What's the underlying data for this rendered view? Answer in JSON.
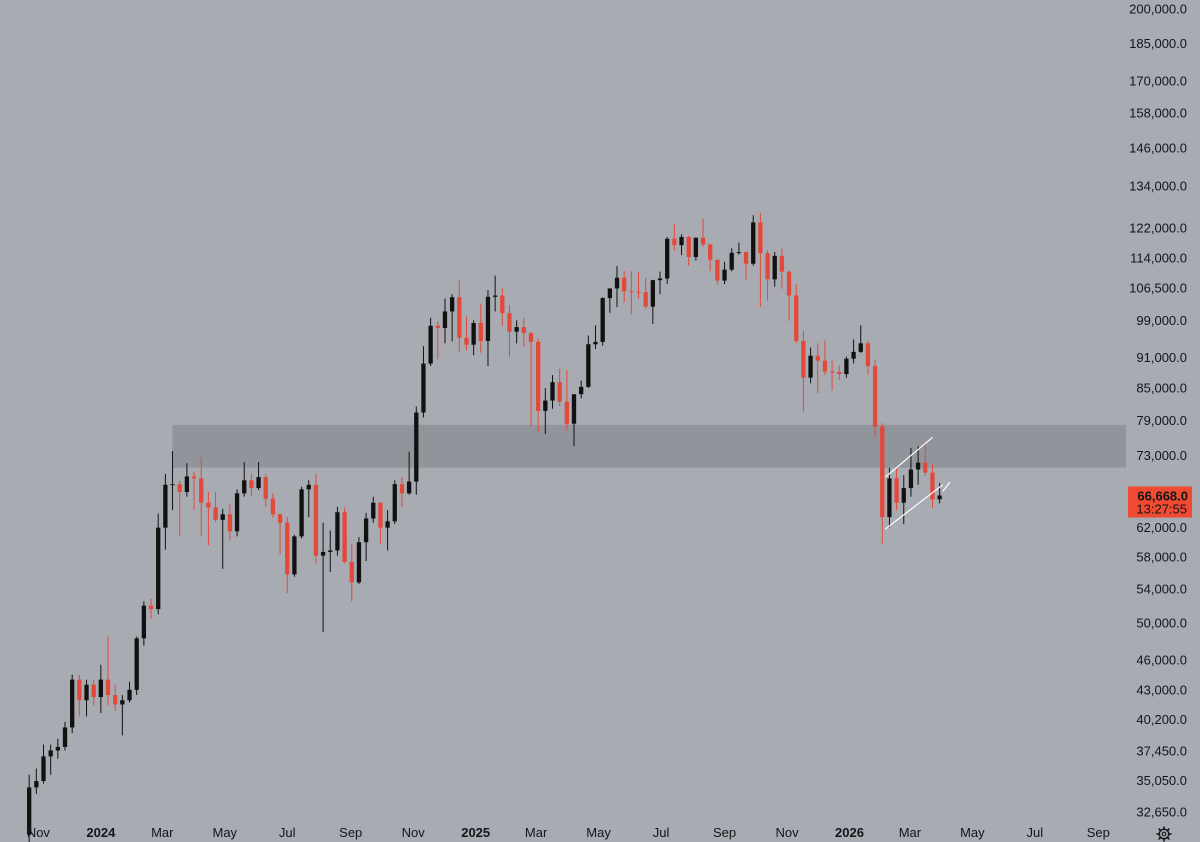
{
  "colors": {
    "background": "#a9abb2",
    "up": "#111111",
    "down": "#e3493a",
    "zone": "#8d8f95",
    "channel": "#ffffff",
    "price_tag": "#f04a33",
    "text": "#141519"
  },
  "icons": {
    "settings": "gear-icon"
  },
  "chart_data": {
    "type": "candlestick",
    "interval": "weekly",
    "y_scale": "log",
    "ylim": [
      30500,
      204000
    ],
    "xlim": [
      "2023-10-16",
      "2026-09-28"
    ],
    "title": "",
    "xlabel": "",
    "ylabel": "",
    "grid": false,
    "y_ticks": [
      "200,000.0",
      "185,000.0",
      "170,000.0",
      "158,000.0",
      "146,000.0",
      "134,000.0",
      "122,000.0",
      "114,000.0",
      "106,500.0",
      "99,000.0",
      "91,000.0",
      "85,000.0",
      "79,000.0",
      "73,000.0",
      "62,000.0",
      "58,000.0",
      "54,000.0",
      "50,000.0",
      "46,000.0",
      "43,000.0",
      "40,200.0",
      "37,450.0",
      "35,050.0",
      "32,650.0"
    ],
    "x_ticks": [
      {
        "label": "Nov",
        "date": "2023-11-01",
        "bold": false
      },
      {
        "label": "2024",
        "date": "2024-01-01",
        "bold": true
      },
      {
        "label": "Mar",
        "date": "2024-03-01",
        "bold": false
      },
      {
        "label": "May",
        "date": "2024-05-01",
        "bold": false
      },
      {
        "label": "Jul",
        "date": "2024-07-01",
        "bold": false
      },
      {
        "label": "Sep",
        "date": "2024-09-01",
        "bold": false
      },
      {
        "label": "Nov",
        "date": "2024-11-01",
        "bold": false
      },
      {
        "label": "2025",
        "date": "2025-01-01",
        "bold": true
      },
      {
        "label": "Mar",
        "date": "2025-03-01",
        "bold": false
      },
      {
        "label": "May",
        "date": "2025-05-01",
        "bold": false
      },
      {
        "label": "Jul",
        "date": "2025-07-01",
        "bold": false
      },
      {
        "label": "Sep",
        "date": "2025-09-01",
        "bold": false
      },
      {
        "label": "Nov",
        "date": "2025-11-01",
        "bold": false
      },
      {
        "label": "2026",
        "date": "2026-01-01",
        "bold": true
      },
      {
        "label": "Mar",
        "date": "2026-03-01",
        "bold": false
      },
      {
        "label": "May",
        "date": "2026-05-01",
        "bold": false
      },
      {
        "label": "Jul",
        "date": "2026-07-01",
        "bold": false
      },
      {
        "label": "Sep",
        "date": "2026-09-01",
        "bold": false
      }
    ],
    "candles": [
      {
        "date": "2023-10-23",
        "o": 31000,
        "h": 35500,
        "l": 30500,
        "c": 34500
      },
      {
        "date": "2023-10-30",
        "o": 34500,
        "h": 36000,
        "l": 34000,
        "c": 35000
      },
      {
        "date": "2023-11-06",
        "o": 35000,
        "h": 38000,
        "l": 34800,
        "c": 37000
      },
      {
        "date": "2023-11-13",
        "o": 37000,
        "h": 38000,
        "l": 35500,
        "c": 37500
      },
      {
        "date": "2023-11-20",
        "o": 37500,
        "h": 38500,
        "l": 36800,
        "c": 37800
      },
      {
        "date": "2023-11-27",
        "o": 37800,
        "h": 40000,
        "l": 37500,
        "c": 39500
      },
      {
        "date": "2023-12-04",
        "o": 39500,
        "h": 44500,
        "l": 39000,
        "c": 44000
      },
      {
        "date": "2023-12-11",
        "o": 44000,
        "h": 44500,
        "l": 40500,
        "c": 42000
      },
      {
        "date": "2023-12-18",
        "o": 42000,
        "h": 44000,
        "l": 40500,
        "c": 43500
      },
      {
        "date": "2023-12-25",
        "o": 43500,
        "h": 44000,
        "l": 41500,
        "c": 42300
      },
      {
        "date": "2024-01-01",
        "o": 42300,
        "h": 45500,
        "l": 40800,
        "c": 44000
      },
      {
        "date": "2024-01-08",
        "o": 44000,
        "h": 48500,
        "l": 41500,
        "c": 42500
      },
      {
        "date": "2024-01-15",
        "o": 42500,
        "h": 43500,
        "l": 41000,
        "c": 41600
      },
      {
        "date": "2024-01-22",
        "o": 41600,
        "h": 42500,
        "l": 38800,
        "c": 42000
      },
      {
        "date": "2024-01-29",
        "o": 42000,
        "h": 43800,
        "l": 41800,
        "c": 43000
      },
      {
        "date": "2024-02-05",
        "o": 43000,
        "h": 48500,
        "l": 42500,
        "c": 48300
      },
      {
        "date": "2024-02-12",
        "o": 48300,
        "h": 52500,
        "l": 47500,
        "c": 52000
      },
      {
        "date": "2024-02-19",
        "o": 52000,
        "h": 52800,
        "l": 50500,
        "c": 51600
      },
      {
        "date": "2024-02-26",
        "o": 51600,
        "h": 64000,
        "l": 51000,
        "c": 62000
      },
      {
        "date": "2024-03-04",
        "o": 62000,
        "h": 70000,
        "l": 59000,
        "c": 68300
      },
      {
        "date": "2024-03-11",
        "o": 68300,
        "h": 73700,
        "l": 64500,
        "c": 68400
      },
      {
        "date": "2024-03-18",
        "o": 68400,
        "h": 68900,
        "l": 60800,
        "c": 67200
      },
      {
        "date": "2024-03-25",
        "o": 67200,
        "h": 71700,
        "l": 66500,
        "c": 69600
      },
      {
        "date": "2024-04-01",
        "o": 69600,
        "h": 70300,
        "l": 64500,
        "c": 69300
      },
      {
        "date": "2024-04-08",
        "o": 69300,
        "h": 72700,
        "l": 60800,
        "c": 65600
      },
      {
        "date": "2024-04-15",
        "o": 65600,
        "h": 67200,
        "l": 59600,
        "c": 64900
      },
      {
        "date": "2024-04-22",
        "o": 64900,
        "h": 67200,
        "l": 62800,
        "c": 63100
      },
      {
        "date": "2024-04-29",
        "o": 63100,
        "h": 64700,
        "l": 56500,
        "c": 63900
      },
      {
        "date": "2024-05-06",
        "o": 63900,
        "h": 65400,
        "l": 60200,
        "c": 61500
      },
      {
        "date": "2024-05-13",
        "o": 61500,
        "h": 67600,
        "l": 60800,
        "c": 67000
      },
      {
        "date": "2024-05-20",
        "o": 67000,
        "h": 71900,
        "l": 66500,
        "c": 69000
      },
      {
        "date": "2024-05-27",
        "o": 69000,
        "h": 70000,
        "l": 66600,
        "c": 67800
      },
      {
        "date": "2024-06-03",
        "o": 67800,
        "h": 71900,
        "l": 67500,
        "c": 69500
      },
      {
        "date": "2024-06-10",
        "o": 69500,
        "h": 70000,
        "l": 65000,
        "c": 66200
      },
      {
        "date": "2024-06-17",
        "o": 66200,
        "h": 67000,
        "l": 63400,
        "c": 63900
      },
      {
        "date": "2024-06-24",
        "o": 63900,
        "h": 64000,
        "l": 58400,
        "c": 62700
      },
      {
        "date": "2024-07-01",
        "o": 62700,
        "h": 63500,
        "l": 53500,
        "c": 55800
      },
      {
        "date": "2024-07-08",
        "o": 55800,
        "h": 61000,
        "l": 55500,
        "c": 60800
      },
      {
        "date": "2024-07-15",
        "o": 60800,
        "h": 68000,
        "l": 60500,
        "c": 67600
      },
      {
        "date": "2024-07-22",
        "o": 67600,
        "h": 69000,
        "l": 63500,
        "c": 68300
      },
      {
        "date": "2024-07-29",
        "o": 68300,
        "h": 70000,
        "l": 57200,
        "c": 58200
      },
      {
        "date": "2024-08-05",
        "o": 58200,
        "h": 62700,
        "l": 49000,
        "c": 58700
      },
      {
        "date": "2024-08-12",
        "o": 58700,
        "h": 61600,
        "l": 56100,
        "c": 58900
      },
      {
        "date": "2024-08-19",
        "o": 58900,
        "h": 65000,
        "l": 58200,
        "c": 64200
      },
      {
        "date": "2024-08-26",
        "o": 64200,
        "h": 64900,
        "l": 57200,
        "c": 57400
      },
      {
        "date": "2024-09-02",
        "o": 57400,
        "h": 59800,
        "l": 52500,
        "c": 54800
      },
      {
        "date": "2024-09-09",
        "o": 54800,
        "h": 60700,
        "l": 54600,
        "c": 60000
      },
      {
        "date": "2024-09-16",
        "o": 60000,
        "h": 64100,
        "l": 57500,
        "c": 63300
      },
      {
        "date": "2024-09-23",
        "o": 63300,
        "h": 66500,
        "l": 62700,
        "c": 65600
      },
      {
        "date": "2024-09-30",
        "o": 65600,
        "h": 65600,
        "l": 59800,
        "c": 62000
      },
      {
        "date": "2024-10-07",
        "o": 62000,
        "h": 64500,
        "l": 58900,
        "c": 62900
      },
      {
        "date": "2024-10-14",
        "o": 62900,
        "h": 69000,
        "l": 62500,
        "c": 68400
      },
      {
        "date": "2024-10-21",
        "o": 68400,
        "h": 69500,
        "l": 65000,
        "c": 67000
      },
      {
        "date": "2024-10-28",
        "o": 67000,
        "h": 73600,
        "l": 66800,
        "c": 68800
      },
      {
        "date": "2024-11-04",
        "o": 68800,
        "h": 81500,
        "l": 66800,
        "c": 80400
      },
      {
        "date": "2024-11-11",
        "o": 80400,
        "h": 93400,
        "l": 79500,
        "c": 89800
      },
      {
        "date": "2024-11-18",
        "o": 89800,
        "h": 99600,
        "l": 89300,
        "c": 97800
      },
      {
        "date": "2024-11-25",
        "o": 97800,
        "h": 98700,
        "l": 90700,
        "c": 97300
      },
      {
        "date": "2024-12-02",
        "o": 97300,
        "h": 104000,
        "l": 94000,
        "c": 101000
      },
      {
        "date": "2024-12-09",
        "o": 101000,
        "h": 105000,
        "l": 94400,
        "c": 104300
      },
      {
        "date": "2024-12-16",
        "o": 104300,
        "h": 108300,
        "l": 92300,
        "c": 95200
      },
      {
        "date": "2024-12-23",
        "o": 95200,
        "h": 99900,
        "l": 92500,
        "c": 93700
      },
      {
        "date": "2024-12-30",
        "o": 93700,
        "h": 99000,
        "l": 91500,
        "c": 98400
      },
      {
        "date": "2025-01-06",
        "o": 98400,
        "h": 102700,
        "l": 92000,
        "c": 94500
      },
      {
        "date": "2025-01-13",
        "o": 94500,
        "h": 106000,
        "l": 89300,
        "c": 104400
      },
      {
        "date": "2025-01-20",
        "o": 104400,
        "h": 109500,
        "l": 101000,
        "c": 104700
      },
      {
        "date": "2025-01-27",
        "o": 104700,
        "h": 106400,
        "l": 97800,
        "c": 100600
      },
      {
        "date": "2025-02-03",
        "o": 100600,
        "h": 102500,
        "l": 91200,
        "c": 96500
      },
      {
        "date": "2025-02-10",
        "o": 96500,
        "h": 99000,
        "l": 94000,
        "c": 97500
      },
      {
        "date": "2025-02-17",
        "o": 97500,
        "h": 99500,
        "l": 93300,
        "c": 96200
      },
      {
        "date": "2025-02-24",
        "o": 96200,
        "h": 96500,
        "l": 78000,
        "c": 94300
      },
      {
        "date": "2025-03-03",
        "o": 94300,
        "h": 95000,
        "l": 77000,
        "c": 80700
      },
      {
        "date": "2025-03-10",
        "o": 80700,
        "h": 85000,
        "l": 76600,
        "c": 82600
      },
      {
        "date": "2025-03-17",
        "o": 82600,
        "h": 87500,
        "l": 81100,
        "c": 86100
      },
      {
        "date": "2025-03-24",
        "o": 86100,
        "h": 88800,
        "l": 81600,
        "c": 82400
      },
      {
        "date": "2025-03-31",
        "o": 82400,
        "h": 88500,
        "l": 77200,
        "c": 78400
      },
      {
        "date": "2025-04-07",
        "o": 78400,
        "h": 83500,
        "l": 74500,
        "c": 83800
      },
      {
        "date": "2025-04-14",
        "o": 83800,
        "h": 86400,
        "l": 83000,
        "c": 85200
      },
      {
        "date": "2025-04-21",
        "o": 85200,
        "h": 95700,
        "l": 85000,
        "c": 93800
      },
      {
        "date": "2025-04-28",
        "o": 93800,
        "h": 97900,
        "l": 92800,
        "c": 94300
      },
      {
        "date": "2025-05-05",
        "o": 94300,
        "h": 104300,
        "l": 93500,
        "c": 104100
      },
      {
        "date": "2025-05-12",
        "o": 104100,
        "h": 105800,
        "l": 100700,
        "c": 106400
      },
      {
        "date": "2025-05-19",
        "o": 106400,
        "h": 111900,
        "l": 102000,
        "c": 109000
      },
      {
        "date": "2025-05-26",
        "o": 109000,
        "h": 110700,
        "l": 103100,
        "c": 105700
      },
      {
        "date": "2025-06-02",
        "o": 105700,
        "h": 110500,
        "l": 100400,
        "c": 105600
      },
      {
        "date": "2025-06-09",
        "o": 105600,
        "h": 110300,
        "l": 104000,
        "c": 105500
      },
      {
        "date": "2025-06-16",
        "o": 105500,
        "h": 108900,
        "l": 101500,
        "c": 102100
      },
      {
        "date": "2025-06-23",
        "o": 102100,
        "h": 108500,
        "l": 98200,
        "c": 108400
      },
      {
        "date": "2025-06-30",
        "o": 108400,
        "h": 110500,
        "l": 105000,
        "c": 108800
      },
      {
        "date": "2025-07-07",
        "o": 108800,
        "h": 119500,
        "l": 107500,
        "c": 119000
      },
      {
        "date": "2025-07-14",
        "o": 119000,
        "h": 123200,
        "l": 115800,
        "c": 117300
      },
      {
        "date": "2025-07-21",
        "o": 117300,
        "h": 120200,
        "l": 114700,
        "c": 119500
      },
      {
        "date": "2025-07-28",
        "o": 119500,
        "h": 119800,
        "l": 112000,
        "c": 114200
      },
      {
        "date": "2025-08-04",
        "o": 114200,
        "h": 119300,
        "l": 113300,
        "c": 119300
      },
      {
        "date": "2025-08-11",
        "o": 119300,
        "h": 124500,
        "l": 116800,
        "c": 117500
      },
      {
        "date": "2025-08-18",
        "o": 117500,
        "h": 117600,
        "l": 110600,
        "c": 113500
      },
      {
        "date": "2025-08-25",
        "o": 113500,
        "h": 113600,
        "l": 107300,
        "c": 108300
      },
      {
        "date": "2025-09-01",
        "o": 108300,
        "h": 113000,
        "l": 107400,
        "c": 111000
      },
      {
        "date": "2025-09-08",
        "o": 111000,
        "h": 116500,
        "l": 110600,
        "c": 115300
      },
      {
        "date": "2025-09-15",
        "o": 115300,
        "h": 118000,
        "l": 114800,
        "c": 115500
      },
      {
        "date": "2025-09-22",
        "o": 115500,
        "h": 115600,
        "l": 108600,
        "c": 112500
      },
      {
        "date": "2025-09-29",
        "o": 112500,
        "h": 125500,
        "l": 112000,
        "c": 123500
      },
      {
        "date": "2025-10-06",
        "o": 123500,
        "h": 126200,
        "l": 102000,
        "c": 115200
      },
      {
        "date": "2025-10-13",
        "o": 115200,
        "h": 116000,
        "l": 103500,
        "c": 108600
      },
      {
        "date": "2025-10-20",
        "o": 108600,
        "h": 115500,
        "l": 106800,
        "c": 114500
      },
      {
        "date": "2025-10-27",
        "o": 114500,
        "h": 116400,
        "l": 106300,
        "c": 110500
      },
      {
        "date": "2025-11-03",
        "o": 110500,
        "h": 110800,
        "l": 98900,
        "c": 104700
      },
      {
        "date": "2025-11-10",
        "o": 104700,
        "h": 107500,
        "l": 94000,
        "c": 94500
      },
      {
        "date": "2025-11-17",
        "o": 94500,
        "h": 96600,
        "l": 80600,
        "c": 87000
      },
      {
        "date": "2025-11-24",
        "o": 87000,
        "h": 93100,
        "l": 85900,
        "c": 91400
      },
      {
        "date": "2025-12-01",
        "o": 91400,
        "h": 94000,
        "l": 84000,
        "c": 90400
      },
      {
        "date": "2025-12-08",
        "o": 90400,
        "h": 94600,
        "l": 87500,
        "c": 88200
      },
      {
        "date": "2025-12-15",
        "o": 88200,
        "h": 90400,
        "l": 84500,
        "c": 88100
      },
      {
        "date": "2025-12-22",
        "o": 88100,
        "h": 89400,
        "l": 86500,
        "c": 87700
      },
      {
        "date": "2025-12-29",
        "o": 87700,
        "h": 91200,
        "l": 87000,
        "c": 90800
      },
      {
        "date": "2026-01-05",
        "o": 90800,
        "h": 94800,
        "l": 89800,
        "c": 92200
      },
      {
        "date": "2026-01-12",
        "o": 92200,
        "h": 97900,
        "l": 92000,
        "c": 94000
      },
      {
        "date": "2026-01-19",
        "o": 94000,
        "h": 94500,
        "l": 87600,
        "c": 89300
      },
      {
        "date": "2026-01-26",
        "o": 89300,
        "h": 90500,
        "l": 76000,
        "c": 77900
      },
      {
        "date": "2026-02-02",
        "o": 77900,
        "h": 78500,
        "l": 59800,
        "c": 63500
      },
      {
        "date": "2026-02-09",
        "o": 63500,
        "h": 71000,
        "l": 62000,
        "c": 69300
      },
      {
        "date": "2026-02-16",
        "o": 69300,
        "h": 71000,
        "l": 64500,
        "c": 65600
      },
      {
        "date": "2026-02-23",
        "o": 65600,
        "h": 69800,
        "l": 62500,
        "c": 67800
      },
      {
        "date": "2026-03-02",
        "o": 67800,
        "h": 74200,
        "l": 66500,
        "c": 70700
      },
      {
        "date": "2026-03-09",
        "o": 70700,
        "h": 74500,
        "l": 68300,
        "c": 71800
      },
      {
        "date": "2026-03-16",
        "o": 71800,
        "h": 75000,
        "l": 69700,
        "c": 70200
      },
      {
        "date": "2026-03-23",
        "o": 70200,
        "h": 71500,
        "l": 64800,
        "c": 66100
      },
      {
        "date": "2026-03-30",
        "o": 66100,
        "h": 68600,
        "l": 65500,
        "c": 66668
      }
    ],
    "zone": {
      "low": 71000,
      "high": 78200,
      "start": "2024-03-11",
      "end": "2026-09-28"
    },
    "channel": {
      "lower": [
        [
          "2026-02-05",
          61800
        ],
        [
          "2026-04-02",
          68300
        ]
      ],
      "upper": [
        [
          "2026-02-05",
          69500
        ],
        [
          "2026-03-23",
          76000
        ]
      ],
      "mid": [
        [
          "2026-04-02",
          67300
        ],
        [
          "2026-04-09",
          68700
        ]
      ]
    },
    "last_price": {
      "value": 66668,
      "label": "66,668.0",
      "countdown": "13:27:55"
    }
  }
}
